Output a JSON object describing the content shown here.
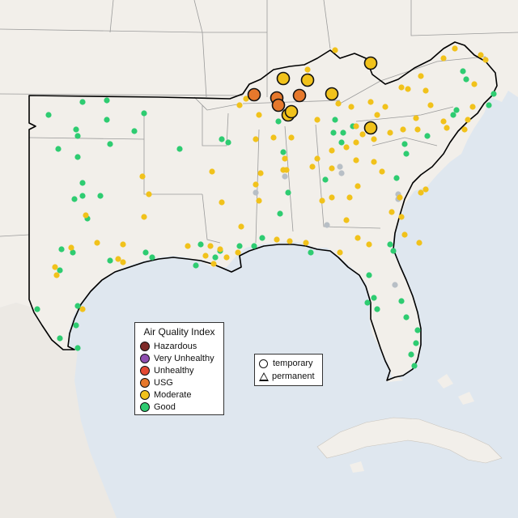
{
  "legend": {
    "title": "Air Quality Index",
    "levels": [
      {
        "label": "Hazardous",
        "color": "#7e2a28"
      },
      {
        "label": "Very Unhealthy",
        "color": "#8e4fb0"
      },
      {
        "label": "Unhealthy",
        "color": "#e34a33"
      },
      {
        "label": "USG",
        "color": "#e6782c"
      },
      {
        "label": "Moderate",
        "color": "#f1c21b"
      },
      {
        "label": "Good",
        "color": "#2ecc71"
      }
    ]
  },
  "shape_legend": {
    "temporary": "temporary",
    "permanent": "permanent"
  },
  "colors": {
    "water": "#dfe7ef",
    "land": "#f2efea",
    "region_outline": "#000000",
    "state_borders": "#9a9a9a",
    "no_data_station": "#b8bfc6"
  }
}
